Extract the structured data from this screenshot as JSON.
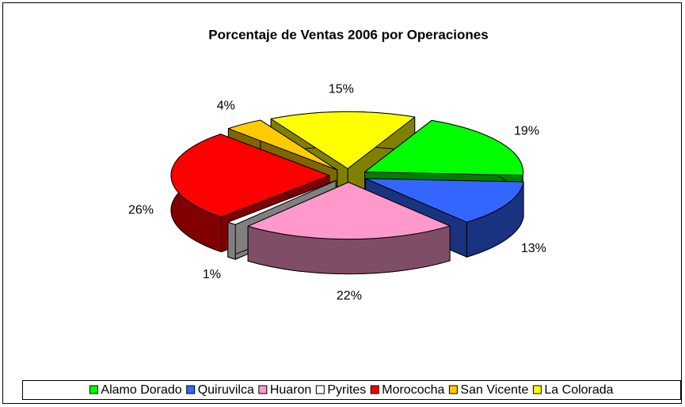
{
  "chart_data": {
    "type": "pie3d",
    "title": "Porcentaje de Ventas 2006  por Operaciones",
    "categories": [
      "Alamo Dorado",
      "Quiruvilca",
      "Huaron",
      "Pyrites",
      "Morococha",
      "San Vicente",
      "La Colorada"
    ],
    "values": [
      19,
      13,
      22,
      1,
      26,
      4,
      15
    ],
    "value_labels": [
      "19%",
      "13%",
      "22%",
      "1%",
      "26%",
      "4%",
      "15%"
    ],
    "colors": [
      "#00ff00",
      "#3366ff",
      "#ff99cc",
      "#ffffff",
      "#ff0000",
      "#ffcc00",
      "#ffff00"
    ],
    "legend": "bottom"
  }
}
